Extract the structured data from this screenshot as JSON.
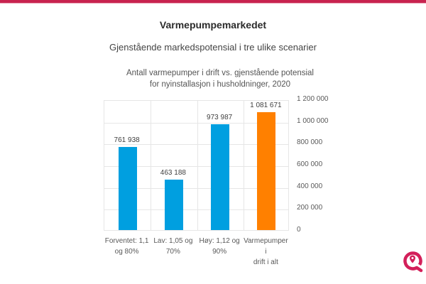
{
  "header": {
    "accent_color": "#c8234f"
  },
  "page": {
    "title": "Varmepumpemarkedet",
    "subtitle": "Gjenstående markedspotensial i tre ulike scenarier"
  },
  "logo": {
    "icon": "location-pin-ring-icon",
    "color": "#d3205a"
  },
  "chart_data": {
    "type": "bar",
    "title": "Antall varmepumper i drift vs. gjenstående potensial for nyinstallasjon i husholdninger, 2020",
    "title_lines": [
      "Antall varmepumper i drift vs. gjenstående potensial",
      "for nyinstallasjon i husholdninger, 2020"
    ],
    "categories": [
      "Forventet: 1,1 og 80%",
      "Lav: 1,05 og 70%",
      "Høy: 1,12 og 90%",
      "Varmepumper i drift i alt"
    ],
    "category_lines": [
      [
        "Forventet: 1,1",
        "og 80%"
      ],
      [
        "Lav: 1,05 og 70%",
        ""
      ],
      [
        "Høy: 1,12 og",
        "90%"
      ],
      [
        "Varmepumper i",
        "drift i alt"
      ]
    ],
    "values": [
      761938,
      463188,
      973987,
      1081671
    ],
    "value_labels": [
      "761 938",
      "463 188",
      "973 987",
      "1 081 671"
    ],
    "colors": [
      "#009fe0",
      "#009fe0",
      "#009fe0",
      "#ff8000"
    ],
    "xlabel": "",
    "ylabel": "",
    "ylim": [
      0,
      1200000
    ],
    "yticks": [
      0,
      200000,
      400000,
      600000,
      800000,
      1000000,
      1200000
    ],
    "ytick_labels": [
      "0",
      "200 000",
      "400 000",
      "600 000",
      "800 000",
      "1 000 000",
      "1 200 000"
    ],
    "y_axis_position": "right",
    "grid": true,
    "legend": null
  }
}
